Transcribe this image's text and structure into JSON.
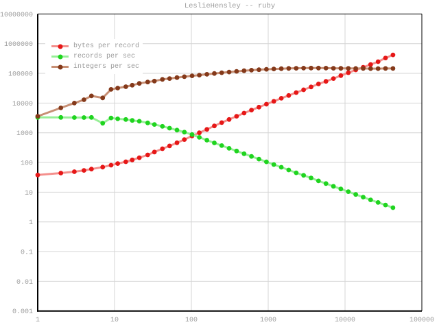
{
  "title": "LeslieHensley -- ruby",
  "colors": {
    "background": "#ffffff",
    "grid": "#d4d4d4",
    "border": "#000000",
    "label": "#9c9c9c",
    "legend_background": "#ffffff"
  },
  "axes": {
    "x": {
      "scale": "log",
      "min": 1,
      "max": 100000,
      "tick_labels": [
        "1",
        "10",
        "100",
        "1000",
        "10000",
        "100000"
      ]
    },
    "y": {
      "scale": "log",
      "min": 0.001,
      "max": 10000000,
      "tick_labels": [
        "10000000",
        "1000000",
        "100000",
        "10000",
        "1000",
        "100",
        "10",
        "1",
        "0.1",
        "0.01",
        "0.001"
      ]
    }
  },
  "legend": {
    "position": "top-left"
  },
  "chart_data": {
    "type": "line",
    "title": "LeslieHensley -- ruby",
    "xlabel": "",
    "ylabel": "",
    "x_scale": "log",
    "y_scale": "log",
    "xlim": [
      1,
      100000
    ],
    "ylim": [
      0.001,
      10000000
    ],
    "grid": true,
    "legend_position": "top-left",
    "marker": "dot",
    "x": [
      1,
      2,
      3,
      4,
      5,
      7,
      9,
      11,
      14,
      17,
      21,
      27,
      33,
      42,
      52,
      65,
      81,
      102,
      127,
      159,
      199,
      248,
      310,
      388,
      485,
      606,
      758,
      947,
      1184,
      1480,
      1850,
      2313,
      2891,
      3614,
      4517,
      5647,
      7058,
      8823,
      11029,
      13786,
      17232,
      21540,
      26926,
      33657,
      42071
    ],
    "series": [
      {
        "name": "bytes per record",
        "line_color": "#f48f8c",
        "marker_color": "#e61717",
        "values": [
          38,
          44,
          49,
          54,
          60,
          70,
          81,
          92,
          106,
          122,
          145,
          180,
          225,
          290,
          360,
          460,
          590,
          780,
          1000,
          1300,
          1700,
          2200,
          2800,
          3600,
          4600,
          5800,
          7300,
          9200,
          11500,
          14500,
          18000,
          22500,
          28000,
          35000,
          44000,
          54000,
          67000,
          84000,
          105000,
          131000,
          160000,
          198000,
          248000,
          330000,
          420000
        ]
      },
      {
        "name": "records per sec",
        "line_color": "#97ef97",
        "marker_color": "#1fd41f",
        "values": [
          3300,
          3300,
          3250,
          3250,
          3300,
          2100,
          3150,
          2950,
          2800,
          2600,
          2450,
          2150,
          1900,
          1650,
          1430,
          1230,
          1050,
          870,
          700,
          565,
          455,
          370,
          300,
          243,
          197,
          160,
          130,
          105,
          85,
          69,
          56,
          45,
          37,
          30,
          24,
          19.5,
          15.8,
          12.8,
          10.4,
          8.4,
          6.8,
          5.5,
          4.5,
          3.7,
          3.0
        ]
      },
      {
        "name": "integers per sec",
        "line_color": "#c78f74",
        "marker_color": "#84391a",
        "values": [
          3600,
          6900,
          10000,
          13000,
          17500,
          15000,
          29000,
          32000,
          35500,
          40000,
          46000,
          51000,
          55000,
          63000,
          67000,
          72000,
          77500,
          83000,
          87500,
          93000,
          99000,
          105000,
          111000,
          117000,
          123000,
          128000,
          133000,
          137000,
          141000,
          144000,
          147000,
          149000,
          150000,
          151000,
          151000,
          150000,
          149000,
          148000,
          147000,
          146000,
          146000,
          145000,
          145000,
          146000,
          146000
        ]
      }
    ]
  }
}
